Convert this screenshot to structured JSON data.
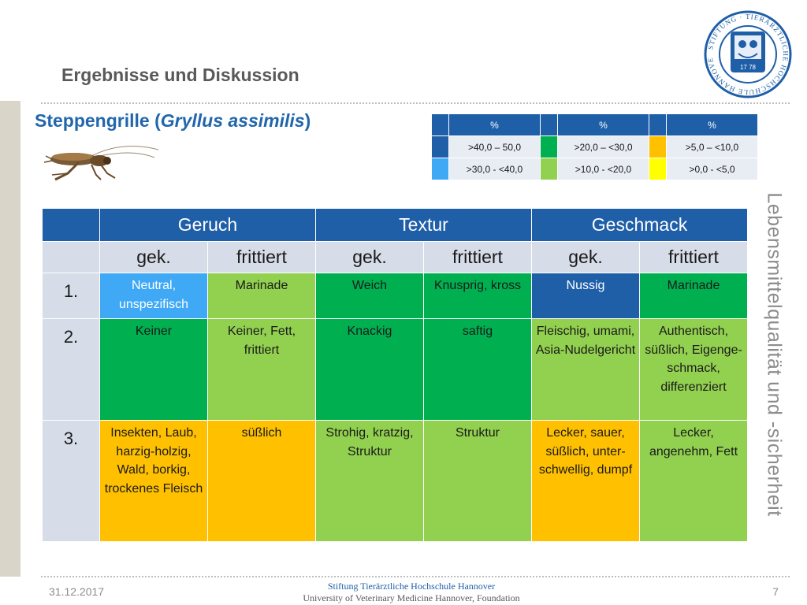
{
  "header": {
    "section_title": "Ergebnisse und Diskussion",
    "subtitle_prefix": "Steppengrille (",
    "subtitle_italic": "Gryllus assimilis",
    "subtitle_suffix": ")"
  },
  "side_text": "Lebensmittelqualität und -sicherheit",
  "logo": {
    "ring_text": "STIFTUNG · TIERÄRZTLICHE HOCHSCHULE HANNOVER",
    "year": "17 78",
    "color": "#1f5fa8"
  },
  "legend": {
    "header": [
      "%",
      "%",
      "%"
    ],
    "rows": [
      [
        {
          "color": "#1f5fa8",
          "label": ">40,0 – 50,0"
        },
        {
          "color": "#00b050",
          "label": ">20,0 – <30,0"
        },
        {
          "color": "#ffc000",
          "label": ">5,0 – <10,0"
        }
      ],
      [
        {
          "color": "#3fa9f5",
          "label": ">30,0 - <40,0"
        },
        {
          "color": "#92d050",
          "label": ">10,0 - <20,0"
        },
        {
          "color": "#ffff00",
          "label": ">0,0 - <5,0"
        }
      ]
    ]
  },
  "table": {
    "groups": [
      "Geruch",
      "Textur",
      "Geschmack"
    ],
    "subheaders": [
      "gek.",
      "frittiert",
      "gek.",
      "frittiert",
      "gek.",
      "frittiert"
    ],
    "rows": [
      {
        "label": "1.",
        "cells": [
          {
            "text": "Neutral, unspezifisch",
            "color": "#3fa9f5"
          },
          {
            "text": "Marinade",
            "color": "#92d050"
          },
          {
            "text": "Weich",
            "color": "#00b050"
          },
          {
            "text": "Knusprig, kross",
            "color": "#00b050"
          },
          {
            "text": "Nussig",
            "color": "#1f5fa8"
          },
          {
            "text": "Marinade",
            "color": "#00b050"
          }
        ]
      },
      {
        "label": "2.",
        "cells": [
          {
            "text": "Keiner",
            "color": "#00b050"
          },
          {
            "text": "Keiner, Fett, frittiert",
            "color": "#92d050"
          },
          {
            "text": "Knackig",
            "color": "#00b050"
          },
          {
            "text": "saftig",
            "color": "#00b050"
          },
          {
            "text": "Fleischig, umami, Asia-Nudelgericht",
            "color": "#92d050"
          },
          {
            "text": "Authentisch, süßlich, Eigenge-schmack, differenziert",
            "color": "#92d050"
          }
        ]
      },
      {
        "label": "3.",
        "cells": [
          {
            "text": "Insekten, Laub, harzig-holzig, Wald, borkig, trockenes Fleisch",
            "color": "#ffc000"
          },
          {
            "text": "süßlich",
            "color": "#ffc000"
          },
          {
            "text": "Strohig, kratzig, Struktur",
            "color": "#92d050"
          },
          {
            "text": "Struktur",
            "color": "#92d050"
          },
          {
            "text": "Lecker, sauer, süßlich, unter-schwellig, dumpf",
            "color": "#ffc000"
          },
          {
            "text": "Lecker, angenehm, Fett",
            "color": "#92d050"
          }
        ]
      }
    ]
  },
  "footer": {
    "date": "31.12.2017",
    "org_line1": "Stiftung Tierärztliche Hochschule Hannover",
    "org_line2": "University of Veterinary Medicine Hannover, Foundation",
    "page": "7"
  }
}
